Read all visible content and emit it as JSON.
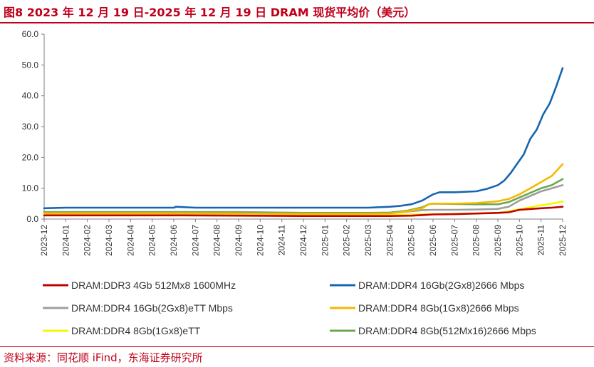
{
  "header": {
    "title": "图8  2023 年 12 月 19 日-2025 年 12 月 19 日 DRAM 现货平均价（美元）"
  },
  "footer": {
    "source": "资料来源：同花顺 iFind，东海证券研究所"
  },
  "chart_data": {
    "type": "line",
    "title": "",
    "xlabel": "",
    "ylabel": "",
    "ylim": [
      0,
      60
    ],
    "yticks": [
      "0.0",
      "10.0",
      "20.0",
      "30.0",
      "40.0",
      "50.0",
      "60.0"
    ],
    "categories": [
      "2023-12",
      "2024-01",
      "2024-02",
      "2024-03",
      "2024-04",
      "2024-05",
      "2024-06",
      "2024-07",
      "2024-08",
      "2024-09",
      "2024-10",
      "2024-11",
      "2024-12",
      "2025-01",
      "2025-02",
      "2025-03",
      "2025-04",
      "2025-05",
      "2025-06",
      "2025-07",
      "2025-08",
      "2025-09",
      "2025-10",
      "2025-11",
      "2025-12"
    ],
    "legend_position": "bottom",
    "grid": false,
    "series": [
      {
        "name": "DRAM:DDR3 4Gb 512Mx8 1600MHz",
        "color": "#c00000",
        "x": [
          0,
          3,
          6,
          9,
          12,
          15,
          16,
          17,
          17.5,
          18,
          19,
          20,
          21,
          21.5,
          22,
          23,
          23.5,
          24
        ],
        "values": [
          1.2,
          1.2,
          1.2,
          1.1,
          1.0,
          1.0,
          1.0,
          1.1,
          1.3,
          1.5,
          1.6,
          1.8,
          2.0,
          2.2,
          3.0,
          3.5,
          3.7,
          4.0
        ]
      },
      {
        "name": "DRAM:DDR4 16Gb(2Gx8)2666 Mbps",
        "color": "#1565b0",
        "x": [
          0,
          1,
          3,
          6,
          6.1,
          7,
          9,
          12,
          15,
          16,
          16.5,
          17,
          17.5,
          18,
          18.3,
          19,
          20,
          20.5,
          21,
          21.3,
          21.6,
          21.9,
          22.2,
          22.5,
          22.8,
          23.1,
          23.4,
          23.7,
          24
        ],
        "values": [
          3.5,
          3.7,
          3.7,
          3.7,
          4.0,
          3.7,
          3.7,
          3.7,
          3.7,
          4.0,
          4.3,
          4.8,
          6.0,
          8.0,
          8.7,
          8.7,
          9.0,
          9.8,
          11.0,
          12.5,
          15.0,
          18.0,
          21.0,
          26.0,
          29.0,
          34.0,
          37.5,
          43.0,
          49.0
        ]
      },
      {
        "name": "DRAM:DDR4 16Gb(2Gx8)eTT Mbps",
        "color": "#9e9e9e",
        "x": [
          0,
          3,
          6,
          9,
          12,
          15,
          16,
          16.8,
          17.5,
          18,
          19,
          20,
          21,
          21.5,
          22,
          22.5,
          23,
          23.5,
          24
        ],
        "values": [
          2.3,
          2.3,
          2.3,
          2.3,
          2.0,
          2.0,
          2.0,
          2.4,
          2.9,
          3.0,
          3.0,
          3.1,
          3.3,
          4.0,
          6.0,
          7.5,
          9.0,
          10.0,
          11.0
        ]
      },
      {
        "name": "DRAM:DDR4 8Gb(1Gx8)2666 Mbps",
        "color": "#f5b800",
        "x": [
          0,
          3,
          6,
          9,
          12,
          15,
          16,
          16.8,
          17.5,
          17.8,
          18,
          19,
          20,
          21,
          21.5,
          22,
          22.5,
          23,
          23.5,
          24
        ],
        "values": [
          1.9,
          1.9,
          1.9,
          1.8,
          1.7,
          1.7,
          1.8,
          2.5,
          3.5,
          4.8,
          5.0,
          5.0,
          5.2,
          5.8,
          6.5,
          8.0,
          10.0,
          12.0,
          14.0,
          17.8
        ]
      },
      {
        "name": "DRAM:DDR4 8Gb(1Gx8)eTT",
        "color": "#f7f700",
        "x": [
          0,
          3,
          6,
          9,
          12,
          15,
          16,
          17,
          18,
          19,
          20,
          21,
          21.5,
          22,
          22.5,
          23,
          23.5,
          24
        ],
        "values": [
          1.4,
          1.4,
          1.4,
          1.4,
          1.2,
          1.2,
          1.3,
          1.5,
          1.6,
          1.7,
          1.8,
          2.0,
          2.5,
          3.2,
          3.8,
          4.5,
          5.0,
          5.7
        ]
      },
      {
        "name": "DRAM:DDR4 8Gb(512Mx16)2666 Mbps",
        "color": "#6aa84f",
        "x": [
          0,
          3,
          6,
          9,
          12,
          15,
          16,
          16.8,
          17.5,
          17.8,
          18,
          19,
          20,
          21,
          21.5,
          22,
          22.5,
          23,
          23.5,
          24
        ],
        "values": [
          2.2,
          2.2,
          2.2,
          2.1,
          2.0,
          2.0,
          2.1,
          2.7,
          3.8,
          4.8,
          5.0,
          4.9,
          4.8,
          4.8,
          5.5,
          7.0,
          8.5,
          10.0,
          11.0,
          13.0
        ]
      }
    ]
  }
}
